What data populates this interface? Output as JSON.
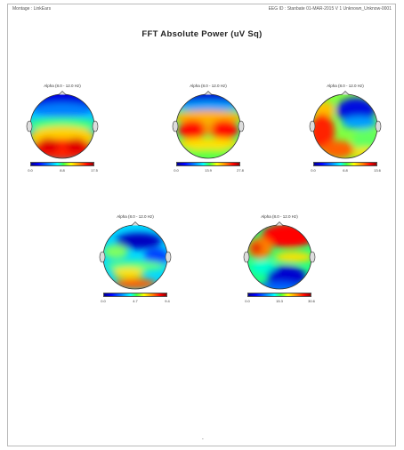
{
  "header": {
    "montage": "Montage : LinkEars",
    "info": "EEG ID : Stanbate 01-MAR-2015 V 1 Unknown_Unknow-0001"
  },
  "title": "FFT Absolute Power  (uV Sq)",
  "colorscale": [
    "#00008f",
    "#0000ff",
    "#0080ff",
    "#00ffff",
    "#40ff40",
    "#ffff00",
    "#ff8000",
    "#ff0000",
    "#900000"
  ],
  "maps": [
    {
      "label": "Alpha (8.0 - 12.0 Hz)",
      "ticks": [
        "0.0",
        "8.8",
        "17.5"
      ]
    },
    {
      "label": "Alpha (8.0 - 12.0 Hz)",
      "ticks": [
        "0.0",
        "13.9",
        "27.8"
      ]
    },
    {
      "label": "Alpha (8.0 - 12.0 Hz)",
      "ticks": [
        "0.0",
        "6.8",
        "13.6"
      ]
    },
    {
      "label": "Alpha (8.0 - 12.0 Hz)",
      "ticks": [
        "0.0",
        "4.7",
        "9.4"
      ]
    },
    {
      "label": "Alpha (8.0 - 12.0 Hz)",
      "ticks": [
        "0.0",
        "15.3",
        "30.6"
      ]
    }
  ],
  "footer": {
    "page": "-"
  }
}
